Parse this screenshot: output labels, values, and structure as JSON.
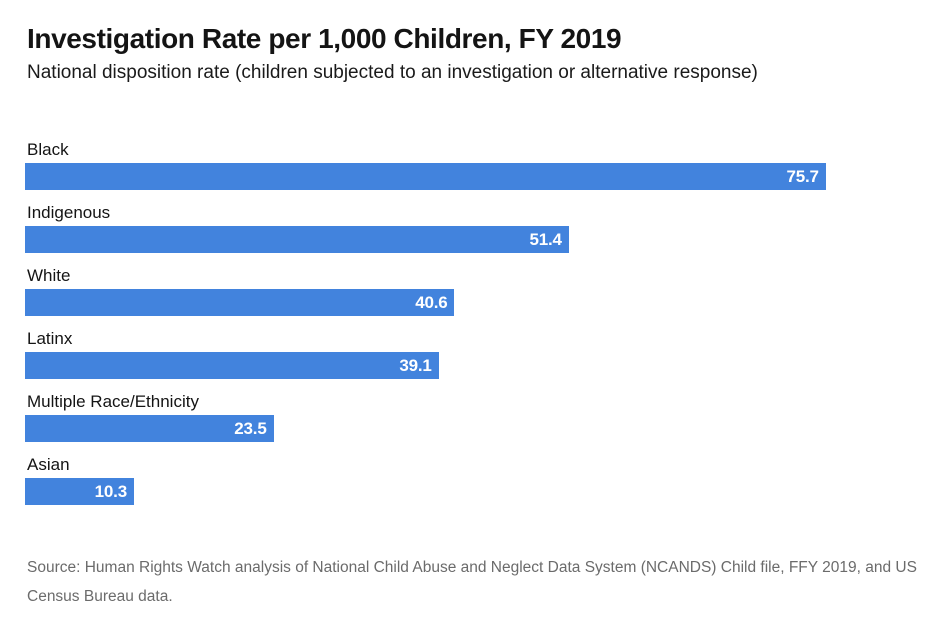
{
  "header": {
    "title": "Investigation Rate per 1,000 Children, FY 2019",
    "subtitle": "National disposition rate (children subjected to an investigation or alternative response)"
  },
  "chart_data": {
    "type": "bar",
    "orientation": "horizontal",
    "title": "Investigation Rate per 1,000 Children, FY 2019",
    "subtitle": "National disposition rate (children subjected to an investigation or alternative response)",
    "categories": [
      "Black",
      "Indigenous",
      "White",
      "Latinx",
      "Multiple Race/Ethnicity",
      "Asian"
    ],
    "values": [
      75.7,
      51.4,
      40.6,
      39.1,
      23.5,
      10.3
    ],
    "xlabel": "",
    "ylabel": "",
    "xlim": [
      0,
      84.7
    ],
    "grid": false,
    "legend": false,
    "bar_color": "#4283DD",
    "value_label_color": "#FFFFFF",
    "value_label_position": "inside-end"
  },
  "footer": {
    "source": "Source: Human Rights Watch analysis of National Child Abuse and Neglect Data System (NCANDS) Child file, FFY 2019, and US Census Bureau data."
  },
  "colors": {
    "background": "#FFFFFF",
    "title_text": "#141414",
    "body_text": "#1A1A1A",
    "source_text": "#6B6B6B",
    "bar": "#4283DD"
  }
}
